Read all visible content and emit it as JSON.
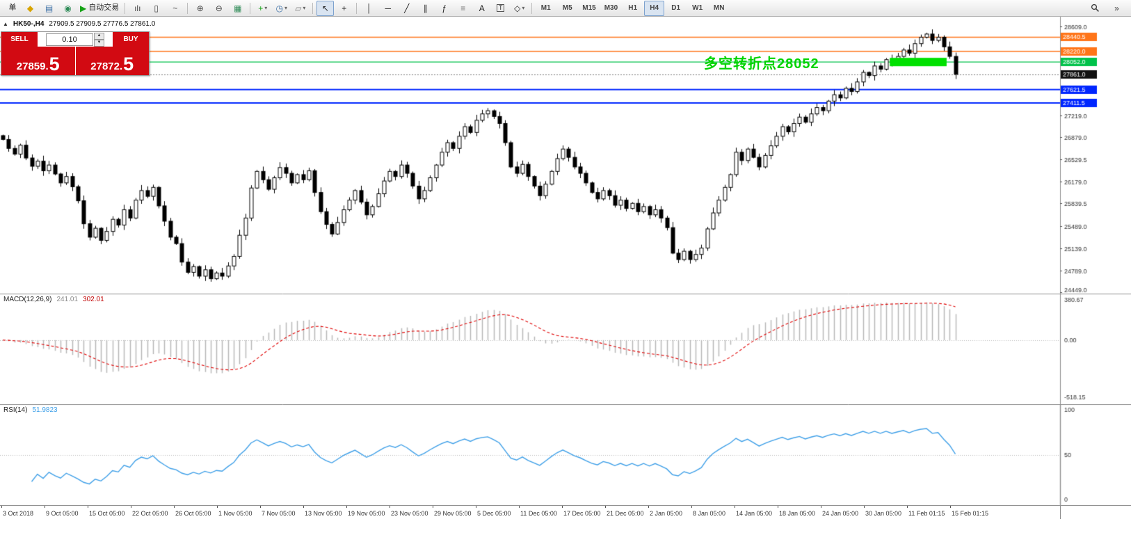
{
  "colors": {
    "trade_red": "#d20a12",
    "annotation_green": "#00d300",
    "zone_green": "#00e000",
    "current_price_tag": "#111111",
    "macd_histogram": "#b8b8b8",
    "macd_signal": "#e00000",
    "rsi_line": "#3d9fe8"
  },
  "toolbar": {
    "dropdown_glyph": "▾",
    "overflow_glyph": "»",
    "items": [
      {
        "name": "new-order-button",
        "label": "单"
      },
      {
        "name": "new-order-icon-button",
        "glyph": "◆",
        "color": "#d8a400"
      },
      {
        "name": "market-watch-button",
        "glyph": "▤",
        "color": "#3a6ea5"
      },
      {
        "name": "navigator-button",
        "glyph": "◉",
        "color": "#2e8b57"
      },
      {
        "name": "autotrading-button",
        "glyph": "▶",
        "color": "#17a317",
        "label": "自动交易"
      },
      {
        "sep": true
      },
      {
        "name": "bar-chart-button",
        "glyph": "ılı",
        "color": "#444"
      },
      {
        "name": "candlestick-chart-button",
        "glyph": "▯",
        "color": "#444"
      },
      {
        "name": "line-chart-button",
        "glyph": "~",
        "color": "#444"
      },
      {
        "sep": true
      },
      {
        "name": "zoom-in-button",
        "glyph": "⊕",
        "color": "#444"
      },
      {
        "name": "zoom-out-button",
        "glyph": "⊖",
        "color": "#444"
      },
      {
        "name": "tile-windows-button",
        "glyph": "▦",
        "color": "#2e8b57"
      },
      {
        "sep": true
      },
      {
        "name": "new-chart-button",
        "glyph": "+",
        "color": "#17a317",
        "dropdown": true
      },
      {
        "name": "profiles-button",
        "glyph": "◷",
        "color": "#3a6ea5",
        "dropdown": true
      },
      {
        "name": "templates-button",
        "glyph": "▱",
        "color": "#777",
        "dropdown": true
      },
      {
        "sep": true
      },
      {
        "name": "cursor-button",
        "glyph": "↖",
        "color": "#222",
        "active": true
      },
      {
        "name": "crosshair-button",
        "glyph": "+",
        "color": "#222"
      },
      {
        "sep": true
      },
      {
        "name": "vertical-line-button",
        "glyph": "│",
        "color": "#222"
      },
      {
        "name": "horizontal-line-button",
        "glyph": "─",
        "color": "#222"
      },
      {
        "name": "trendline-button",
        "glyph": "╱",
        "color": "#222"
      },
      {
        "name": "channel-button",
        "glyph": "∥",
        "color": "#222"
      },
      {
        "name": "fibonacci-button",
        "glyph": "ƒ",
        "color": "#222"
      },
      {
        "name": "grid-button",
        "glyph": "≡",
        "color": "#777"
      },
      {
        "name": "text-button",
        "glyph": "A",
        "color": "#222"
      },
      {
        "name": "text-label-button",
        "glyph": "T",
        "color": "#222",
        "boxed": true
      },
      {
        "name": "shapes-button",
        "glyph": "◇",
        "color": "#222",
        "dropdown": true
      },
      {
        "sep": true
      }
    ],
    "timeframes": [
      "M1",
      "M5",
      "M15",
      "M30",
      "H1",
      "H4",
      "D1",
      "W1",
      "MN"
    ],
    "active_timeframe": "H4"
  },
  "trade_panel": {
    "collapse_arrow": "▲",
    "sell_label": "SELL",
    "buy_label": "BUY",
    "volume": "0.10",
    "volume_up_glyph": "▲",
    "volume_down_glyph": "▼",
    "sell_price": "27859.5",
    "buy_price": "27872.5"
  },
  "chart": {
    "symbol_title": "HK50-,H4",
    "ohlc_line": "27909.5 27909.5 27776.5 27861.0",
    "annotation_text": "多空转折点28052"
  },
  "chart_data": {
    "type": "candlestick",
    "symbol": "HK50-",
    "timeframe": "H4",
    "first_open": 26900,
    "closes": [
      26840,
      26700,
      26610,
      26750,
      26550,
      26420,
      26500,
      26350,
      26440,
      26300,
      26160,
      26260,
      26100,
      25880,
      25520,
      25310,
      25450,
      25260,
      25400,
      25590,
      25500,
      25740,
      25610,
      25890,
      26040,
      25950,
      26090,
      25800,
      25560,
      25310,
      25210,
      24920,
      24760,
      24850,
      24700,
      24800,
      24660,
      24750,
      24700,
      24860,
      25010,
      25340,
      25610,
      26080,
      26340,
      26210,
      26060,
      26240,
      26400,
      26310,
      26160,
      26290,
      26210,
      26350,
      26010,
      25710,
      25510,
      25360,
      25540,
      25740,
      25890,
      26040,
      25860,
      25660,
      25790,
      25990,
      26190,
      26340,
      26260,
      26440,
      26310,
      26110,
      25910,
      26040,
      26240,
      26440,
      26640,
      26790,
      26700,
      26890,
      27040,
      26950,
      27140,
      27240,
      27290,
      27200,
      27090,
      26790,
      26410,
      26310,
      26450,
      26260,
      26110,
      25960,
      26140,
      26340,
      26540,
      26690,
      26560,
      26410,
      26310,
      26160,
      26010,
      25910,
      26040,
      25960,
      25810,
      25890,
      25760,
      25840,
      25710,
      25790,
      25660,
      25740,
      25610,
      25460,
      25060,
      24960,
      25090,
      24960,
      25040,
      25140,
      25440,
      25690,
      25890,
      26090,
      26290,
      26640,
      26510,
      26690,
      26560,
      26410,
      26590,
      26740,
      26890,
      27040,
      26960,
      27090,
      27190,
      27110,
      27240,
      27340,
      27290,
      27440,
      27540,
      27490,
      27640,
      27590,
      27740,
      27890,
      27840,
      27990,
      27940,
      28090,
      28040,
      28140,
      28240,
      28190,
      28340,
      28440,
      28490,
      28390,
      28440,
      28290,
      28140,
      27861
    ],
    "price_axis": {
      "max": 28609.0,
      "min": 24449.0,
      "ticks": [
        "28609.0",
        "27219.0",
        "26879.0",
        "26529.5",
        "26179.0",
        "25839.5",
        "25489.0",
        "25139.0",
        "24789.0",
        "24449.0"
      ],
      "tick_values": [
        28609.0,
        27219.0,
        26879.0,
        26529.5,
        26179.0,
        25839.5,
        25489.0,
        25139.0,
        24789.0,
        24449.0
      ]
    },
    "hlines": [
      {
        "price": 28440.5,
        "label": "28440.5",
        "color": "#ff7519",
        "width": 1.4
      },
      {
        "price": 28220.0,
        "label": "28220.0",
        "color": "#ff7519",
        "width": 1.4
      },
      {
        "price": 28052.0,
        "label": "28052.0",
        "color": "#00c24a",
        "width": 1.4
      },
      {
        "price": 27621.5,
        "label": "27621.5",
        "color": "#0026ff",
        "width": 2
      },
      {
        "price": 27411.5,
        "label": "27411.5",
        "color": "#0026ff",
        "width": 2
      }
    ],
    "current_price": {
      "value": 27861.0,
      "label": "27861.0"
    },
    "green_zone": {
      "price": 28052.0,
      "bar_start": 154,
      "bar_end": 163
    },
    "time_labels": [
      "3 Oct 2018",
      "9 Oct 05:00",
      "15 Oct 05:00",
      "22 Oct 05:00",
      "26 Oct 05:00",
      "1 Nov 05:00",
      "7 Nov 05:00",
      "13 Nov 05:00",
      "19 Nov 05:00",
      "23 Nov 05:00",
      "29 Nov 05:00",
      "5 Dec 05:00",
      "11 Dec 05:00",
      "17 Dec 05:00",
      "21 Dec 05:00",
      "2 Jan 05:00",
      "8 Jan 05:00",
      "14 Jan 05:00",
      "18 Jan 05:00",
      "24 Jan 05:00",
      "30 Jan 05:00",
      "11 Feb 01:15",
      "15 Feb 01:15"
    ],
    "macd": {
      "label": "MACD(12,26,9)",
      "main_value": "241.01",
      "signal_value": "302.01",
      "fast": 12,
      "slow": 26,
      "signal": 9,
      "axis_max": 380.67,
      "axis_min": -518.15,
      "axis_labels": [
        "380.67",
        "0.00",
        "-518.15"
      ]
    },
    "rsi": {
      "label": "RSI(14)",
      "value": "51.9823",
      "period": 14,
      "level": 50,
      "axis_labels": [
        "100",
        "50",
        "0"
      ]
    }
  }
}
